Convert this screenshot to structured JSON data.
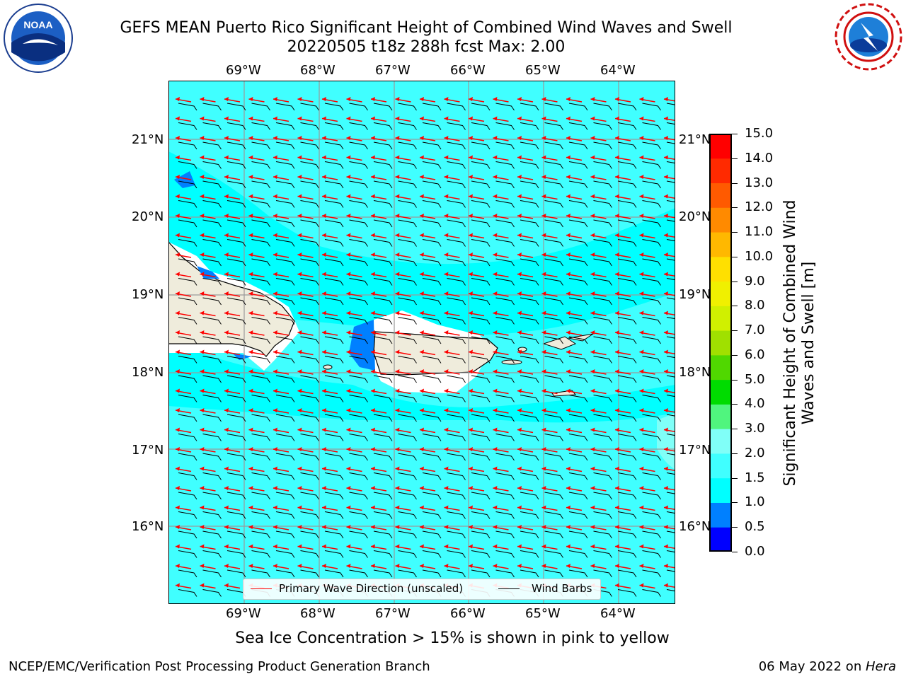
{
  "header": {
    "title_line1": "GEFS MEAN Puerto Rico Significant Height of Combined Wind Waves and Swell",
    "title_line2": "20220505 t18z 288h fcst   Max: 2.00"
  },
  "logos": {
    "left": "noa-logo-icon",
    "right": "nws-logo-icon"
  },
  "map": {
    "lon_ticks": [
      "69°W",
      "68°W",
      "67°W",
      "66°W",
      "65°W",
      "64°W"
    ],
    "lat_ticks": [
      "21°N",
      "20°N",
      "19°N",
      "18°N",
      "17°N",
      "16°N"
    ],
    "colors": {
      "sea_dominant": "#00ffff",
      "sea_light": "#40ffff",
      "sea_high": "#80fff8",
      "sea_low": "#0080ff",
      "land": "#efecdc",
      "wave_arrow": "#ff0000",
      "wind_barb": "#000000"
    }
  },
  "legend": {
    "wave_label": "Primary Wave Direction (unscaled)",
    "wind_label": "Wind Barbs"
  },
  "colorbar": {
    "label": "Significant Height of Combined Wind Waves and Swell [m]",
    "ticks": [
      "0.0",
      "0.5",
      "1.0",
      "1.5",
      "2.0",
      "3.0",
      "4.0",
      "5.0",
      "6.0",
      "7.0",
      "8.0",
      "9.0",
      "10.0",
      "11.0",
      "12.0",
      "13.0",
      "14.0",
      "15.0"
    ],
    "colors": [
      "#0000ff",
      "#0080ff",
      "#00ffff",
      "#40ffff",
      "#80fff8",
      "#50f57e",
      "#00dc00",
      "#50d800",
      "#a0e000",
      "#d0f000",
      "#f0f000",
      "#ffe000",
      "#ffb800",
      "#ff8a00",
      "#ff5a00",
      "#ff2a00",
      "#ff0000"
    ]
  },
  "subnote": "Sea Ice Concentration > 15% is shown in pink to yellow",
  "footer": {
    "left": "NCEP/EMC/Verification Post Processing Product Generation Branch",
    "right_prefix": "06 May 2022 on ",
    "right_host": "Hera"
  }
}
